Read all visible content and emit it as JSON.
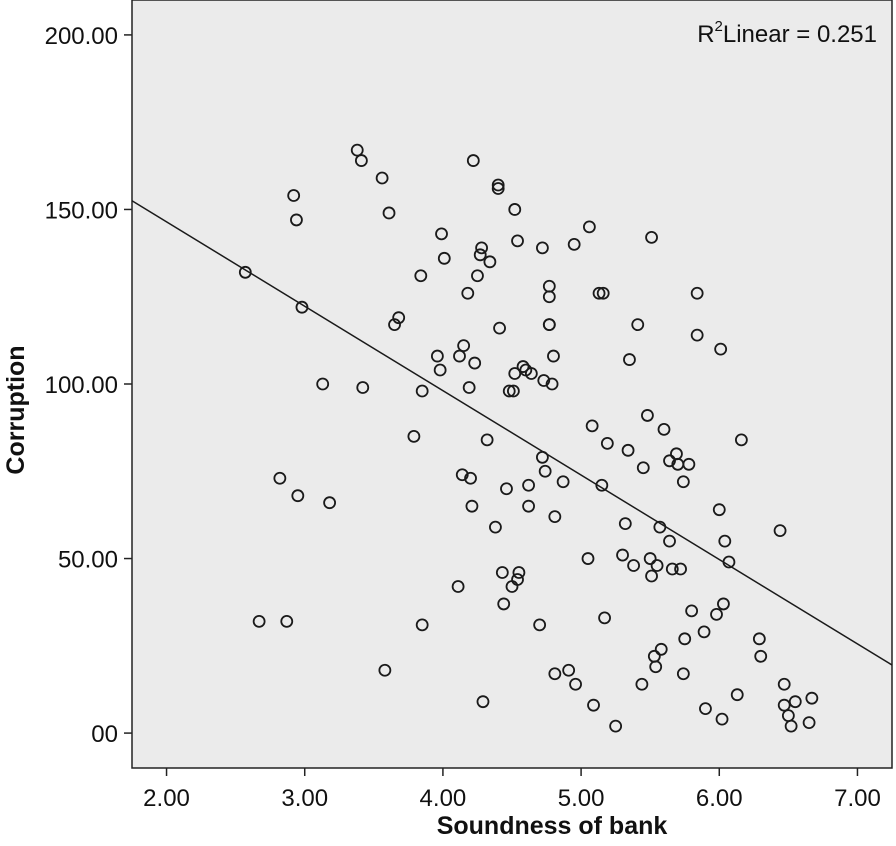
{
  "chart_data": {
    "type": "scatter",
    "xlabel": "Soundness of bank",
    "ylabel": "Corruption",
    "xlim": [
      1.75,
      7.25
    ],
    "ylim": [
      -10,
      210
    ],
    "x_ticks": [
      2,
      3,
      4,
      5,
      6,
      7
    ],
    "x_tick_labels": [
      "2.00",
      "3.00",
      "4.00",
      "5.00",
      "6.00",
      "7.00"
    ],
    "y_ticks": [
      0,
      50,
      100,
      150,
      200
    ],
    "y_tick_labels": [
      "00",
      "50.00",
      "100.00",
      "150.00",
      "200.00"
    ],
    "grid": false,
    "plot_background": "#ebebeb",
    "marker_color": "#1a1a1a",
    "fit_line": {
      "type": "linear",
      "x": [
        1.75,
        7.25
      ],
      "y": [
        152.5,
        19.5
      ]
    },
    "annotation": {
      "r2_prefix": "R",
      "r2_sup": "2",
      "r2_text": "Linear = 0.251",
      "position": "top-right"
    },
    "points": [
      [
        2.57,
        132
      ],
      [
        2.67,
        32
      ],
      [
        2.82,
        73
      ],
      [
        2.87,
        32
      ],
      [
        2.92,
        154
      ],
      [
        2.94,
        147
      ],
      [
        2.95,
        68
      ],
      [
        2.98,
        122
      ],
      [
        3.13,
        100
      ],
      [
        3.18,
        66
      ],
      [
        3.38,
        167
      ],
      [
        3.41,
        164
      ],
      [
        3.42,
        99
      ],
      [
        3.56,
        159
      ],
      [
        3.58,
        18
      ],
      [
        3.61,
        149
      ],
      [
        3.65,
        117
      ],
      [
        3.68,
        119
      ],
      [
        3.79,
        85
      ],
      [
        3.84,
        131
      ],
      [
        3.85,
        31
      ],
      [
        3.85,
        98
      ],
      [
        3.96,
        108
      ],
      [
        3.98,
        104
      ],
      [
        3.99,
        143
      ],
      [
        4.01,
        136
      ],
      [
        4.11,
        42
      ],
      [
        4.12,
        108
      ],
      [
        4.14,
        74
      ],
      [
        4.15,
        111
      ],
      [
        4.18,
        126
      ],
      [
        4.19,
        99
      ],
      [
        4.2,
        73
      ],
      [
        4.21,
        65
      ],
      [
        4.22,
        164
      ],
      [
        4.23,
        106
      ],
      [
        4.25,
        131
      ],
      [
        4.27,
        137
      ],
      [
        4.28,
        139
      ],
      [
        4.29,
        9
      ],
      [
        4.32,
        84
      ],
      [
        4.34,
        135
      ],
      [
        4.38,
        59
      ],
      [
        4.4,
        157
      ],
      [
        4.4,
        156
      ],
      [
        4.41,
        116
      ],
      [
        4.43,
        46
      ],
      [
        4.44,
        37
      ],
      [
        4.46,
        70
      ],
      [
        4.48,
        98
      ],
      [
        4.5,
        42
      ],
      [
        4.51,
        98
      ],
      [
        4.52,
        150
      ],
      [
        4.52,
        103
      ],
      [
        4.54,
        141
      ],
      [
        4.54,
        44
      ],
      [
        4.55,
        46
      ],
      [
        4.58,
        105
      ],
      [
        4.6,
        104
      ],
      [
        4.62,
        71
      ],
      [
        4.62,
        65
      ],
      [
        4.64,
        103
      ],
      [
        4.7,
        31
      ],
      [
        4.72,
        79
      ],
      [
        4.72,
        139
      ],
      [
        4.73,
        101
      ],
      [
        4.74,
        75
      ],
      [
        4.77,
        128
      ],
      [
        4.77,
        125
      ],
      [
        4.77,
        117
      ],
      [
        4.77,
        117
      ],
      [
        4.79,
        100
      ],
      [
        4.8,
        108
      ],
      [
        4.81,
        17
      ],
      [
        4.81,
        62
      ],
      [
        4.87,
        72
      ],
      [
        4.91,
        18
      ],
      [
        4.95,
        140
      ],
      [
        4.96,
        14
      ],
      [
        5.05,
        50
      ],
      [
        5.06,
        145
      ],
      [
        5.08,
        88
      ],
      [
        5.09,
        8
      ],
      [
        5.13,
        126
      ],
      [
        5.15,
        71
      ],
      [
        5.16,
        126
      ],
      [
        5.17,
        33
      ],
      [
        5.19,
        83
      ],
      [
        5.25,
        2
      ],
      [
        5.3,
        51
      ],
      [
        5.32,
        60
      ],
      [
        5.34,
        81
      ],
      [
        5.35,
        107
      ],
      [
        5.38,
        48
      ],
      [
        5.41,
        117
      ],
      [
        5.44,
        14
      ],
      [
        5.45,
        76
      ],
      [
        5.48,
        91
      ],
      [
        5.5,
        50
      ],
      [
        5.51,
        45
      ],
      [
        5.51,
        142
      ],
      [
        5.53,
        22
      ],
      [
        5.54,
        19
      ],
      [
        5.55,
        48
      ],
      [
        5.57,
        59
      ],
      [
        5.58,
        24
      ],
      [
        5.6,
        87
      ],
      [
        5.64,
        78
      ],
      [
        5.64,
        55
      ],
      [
        5.66,
        47
      ],
      [
        5.69,
        80
      ],
      [
        5.7,
        77
      ],
      [
        5.72,
        47
      ],
      [
        5.74,
        17
      ],
      [
        5.74,
        72
      ],
      [
        5.75,
        27
      ],
      [
        5.78,
        77
      ],
      [
        5.8,
        35
      ],
      [
        5.84,
        126
      ],
      [
        5.84,
        114
      ],
      [
        5.89,
        29
      ],
      [
        5.9,
        7
      ],
      [
        5.98,
        34
      ],
      [
        6.0,
        64
      ],
      [
        6.01,
        110
      ],
      [
        6.02,
        4
      ],
      [
        6.03,
        37
      ],
      [
        6.04,
        55
      ],
      [
        6.07,
        49
      ],
      [
        6.13,
        11
      ],
      [
        6.16,
        84
      ],
      [
        6.29,
        27
      ],
      [
        6.3,
        22
      ],
      [
        6.44,
        58
      ],
      [
        6.47,
        14
      ],
      [
        6.47,
        8
      ],
      [
        6.5,
        5
      ],
      [
        6.52,
        2
      ],
      [
        6.55,
        9
      ],
      [
        6.65,
        3
      ],
      [
        6.67,
        10
      ]
    ]
  }
}
